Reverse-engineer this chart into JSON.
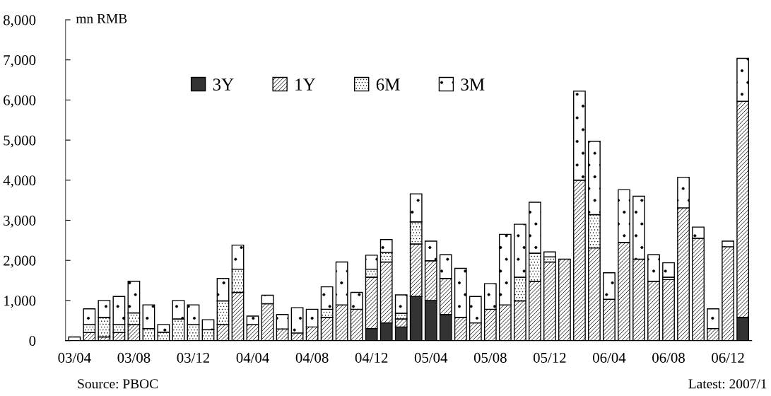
{
  "chart_data": {
    "type": "bar",
    "stacked": true,
    "ylabel": "mn RMB",
    "categories": [
      "03/04",
      null,
      null,
      null,
      "03/08",
      null,
      null,
      null,
      "03/12",
      null,
      null,
      null,
      "04/04",
      null,
      null,
      null,
      "04/08",
      null,
      null,
      null,
      "04/12",
      null,
      null,
      null,
      "05/04",
      null,
      null,
      null,
      "05/08",
      null,
      null,
      null,
      "05/12",
      null,
      null,
      null,
      "06/04",
      null,
      null,
      null,
      "06/08",
      null,
      null,
      null,
      "06/12",
      null
    ],
    "series": [
      {
        "name": "3Y",
        "color": "#333333",
        "values": [
          null,
          null,
          null,
          null,
          null,
          null,
          null,
          null,
          null,
          null,
          null,
          null,
          null,
          null,
          null,
          null,
          null,
          null,
          null,
          null,
          300,
          440,
          340,
          1100,
          1000,
          650,
          null,
          null,
          null,
          null,
          null,
          null,
          null,
          null,
          null,
          null,
          null,
          null,
          null,
          null,
          null,
          null,
          null,
          null,
          null,
          580
        ]
      },
      {
        "name": "1Y",
        "color": "#000000",
        "values": [
          null,
          200,
          90,
          200,
          400,
          null,
          null,
          null,
          null,
          null,
          400,
          1200,
          400,
          920,
          290,
          190,
          340,
          580,
          890,
          780,
          1280,
          1520,
          200,
          1310,
          990,
          900,
          580,
          440,
          780,
          890,
          990,
          1480,
          1960,
          2030,
          4000,
          2310,
          1030,
          2450,
          2030,
          1480,
          1520,
          3310,
          2550,
          300,
          2340,
          5390
        ]
      },
      {
        "name": "6M",
        "color": "#000000",
        "values": [
          null,
          200,
          490,
          200,
          290,
          300,
          210,
          540,
          400,
          270,
          590,
          580,
          null,
          null,
          null,
          null,
          null,
          200,
          null,
          null,
          200,
          240,
          140,
          550,
          null,
          null,
          null,
          null,
          null,
          null,
          590,
          700,
          130,
          null,
          null,
          830,
          null,
          null,
          null,
          null,
          60,
          null,
          null,
          null,
          null,
          null
        ]
      },
      {
        "name": "3M",
        "color": "#000000",
        "values": [
          90,
          390,
          420,
          700,
          790,
          590,
          190,
          460,
          490,
          250,
          560,
          600,
          210,
          210,
          360,
          630,
          440,
          560,
          1070,
          420,
          350,
          320,
          460,
          700,
          490,
          590,
          1220,
          660,
          640,
          1760,
          1320,
          1270,
          120,
          null,
          2220,
          1830,
          660,
          1310,
          1570,
          660,
          360,
          760,
          280,
          490,
          140,
          1070
        ]
      }
    ],
    "ylim": [
      0,
      8000
    ],
    "yticks": [
      {
        "value": 0,
        "label": "0"
      },
      {
        "value": 1000,
        "label": "1,000"
      },
      {
        "value": 2000,
        "label": "2,000"
      },
      {
        "value": 3000,
        "label": "3,000"
      },
      {
        "value": 4000,
        "label": "4,000"
      },
      {
        "value": 5000,
        "label": "5,000"
      },
      {
        "value": 6000,
        "label": "6,000"
      },
      {
        "value": 7000,
        "label": "7,000"
      },
      {
        "value": 8000,
        "label": "8,000"
      }
    ],
    "legend": "top left",
    "annotations": [
      "Source: PBOC",
      "Latest: 2007/1"
    ]
  }
}
